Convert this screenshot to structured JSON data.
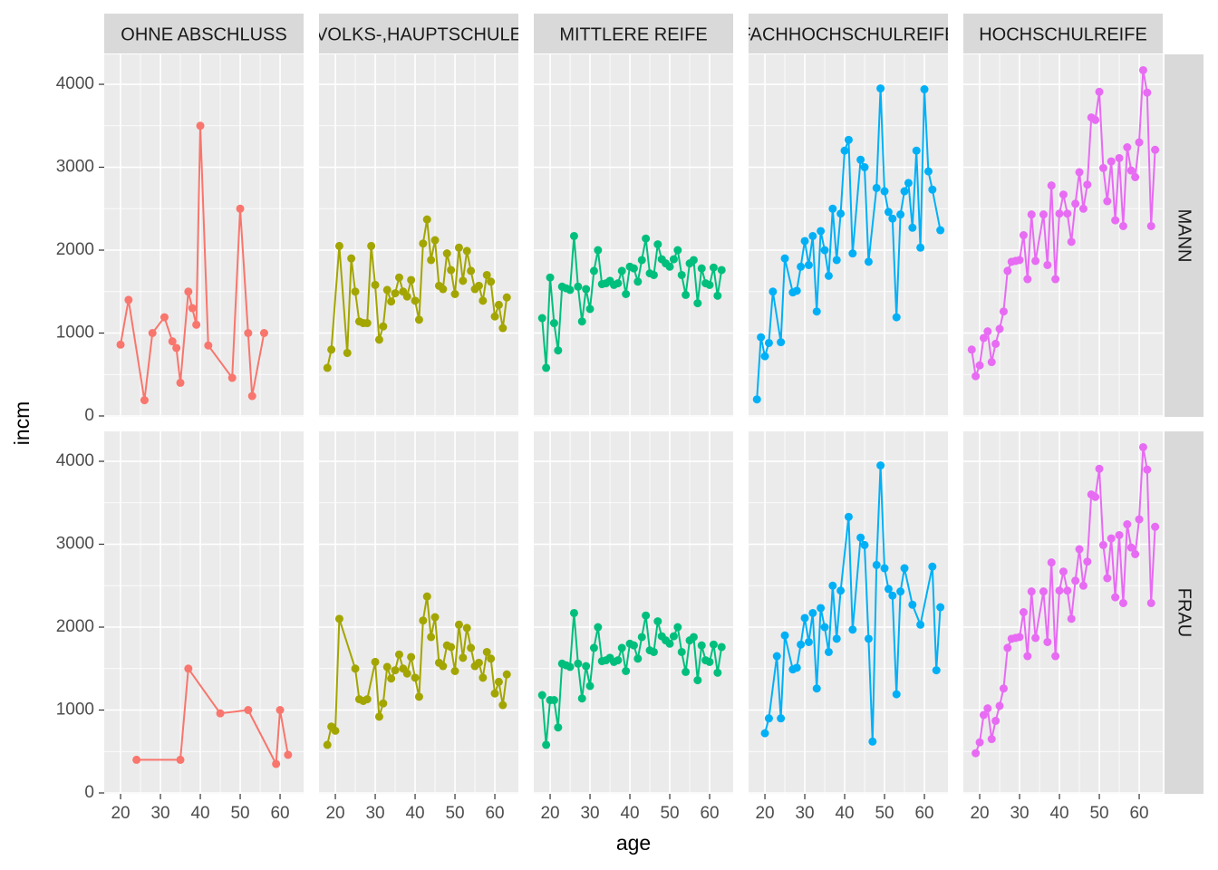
{
  "chart_data": {
    "type": "line",
    "x_label": "age",
    "y_label": "incm",
    "rows": [
      "MANN",
      "FRAU"
    ],
    "xlim": [
      15.9,
      65.9
    ],
    "xticks": [
      20,
      30,
      40,
      50,
      60
    ],
    "ylim": [
      -11,
      4361
    ],
    "yticks": [
      0,
      1000,
      2000,
      3000,
      4000
    ],
    "grid": true,
    "series": [
      {
        "name": "OHNE ABSCHLUSS",
        "color": "#F8766D",
        "rows": [
          {
            "x": [
              20,
              22,
              26,
              28,
              31,
              33,
              34,
              35,
              37,
              38,
              39,
              40,
              42,
              48,
              50,
              52,
              53,
              56
            ],
            "values": [
              860,
              1400,
              190,
              1000,
              1190,
              900,
              820,
              400,
              1500,
              1300,
              1100,
              3500,
              850,
              460,
              2500,
              1000,
              240,
              1000
            ]
          },
          {
            "x": [
              24,
              35,
              37,
              45,
              52,
              59,
              60,
              62
            ],
            "values": [
              400,
              400,
              1500,
              960,
              1000,
              350,
              1000,
              460
            ]
          }
        ]
      },
      {
        "name": "VOLKS-,HAUPTSCHULE",
        "color": "#A3A500",
        "rows": [
          {
            "x": [
              18,
              19,
              21,
              23,
              24,
              25,
              26,
              27,
              28,
              29,
              30,
              31,
              32,
              33,
              34,
              35,
              36,
              37,
              38,
              39,
              40,
              41,
              42,
              43,
              44,
              45,
              46,
              47,
              48,
              49,
              50,
              51,
              52,
              53,
              54,
              55,
              56,
              57,
              58,
              59,
              60,
              61,
              62,
              63
            ],
            "values": [
              580,
              800,
              2050,
              760,
              1900,
              1500,
              1140,
              1120,
              1120,
              2050,
              1580,
              920,
              1080,
              1520,
              1380,
              1480,
              1670,
              1500,
              1440,
              1640,
              1390,
              1160,
              2080,
              2370,
              1880,
              2120,
              1570,
              1530,
              1960,
              1760,
              1470,
              2030,
              1630,
              1990,
              1750,
              1530,
              1570,
              1390,
              1700,
              1620,
              1200,
              1340,
              1060,
              1430
            ]
          },
          {
            "x": [
              18,
              19,
              20,
              21,
              25,
              26,
              27,
              28,
              30,
              31,
              32,
              33,
              34,
              35,
              36,
              37,
              38,
              39,
              40,
              41,
              42,
              43,
              44,
              45,
              46,
              47,
              48,
              49,
              50,
              51,
              52,
              53,
              54,
              55,
              56,
              57,
              58,
              59,
              60,
              61,
              62,
              63
            ],
            "values": [
              580,
              800,
              750,
              2100,
              1500,
              1130,
              1110,
              1130,
              1580,
              920,
              1080,
              1520,
              1380,
              1480,
              1670,
              1500,
              1440,
              1640,
              1390,
              1160,
              2080,
              2370,
              1880,
              2120,
              1570,
              1530,
              1780,
              1760,
              1470,
              2030,
              1630,
              1990,
              1750,
              1530,
              1570,
              1390,
              1700,
              1620,
              1200,
              1340,
              1060,
              1430
            ]
          }
        ]
      },
      {
        "name": "MITTLERE REIFE",
        "color": "#00BF7D",
        "rows": [
          {
            "x": [
              18,
              19,
              20,
              21,
              22,
              23,
              24,
              25,
              26,
              27,
              28,
              29,
              30,
              31,
              32,
              33,
              34,
              35,
              36,
              37,
              38,
              39,
              40,
              41,
              42,
              43,
              44,
              45,
              46,
              47,
              48,
              49,
              50,
              51,
              52,
              53,
              54,
              55,
              56,
              57,
              58,
              59,
              60,
              61,
              62,
              63
            ],
            "values": [
              1180,
              580,
              1670,
              1120,
              790,
              1560,
              1540,
              1520,
              2170,
              1560,
              1140,
              1530,
              1290,
              1750,
              2000,
              1590,
              1600,
              1630,
              1580,
              1600,
              1750,
              1470,
              1800,
              1780,
              1620,
              1880,
              2140,
              1720,
              1700,
              2070,
              1890,
              1840,
              1800,
              1890,
              2000,
              1700,
              1460,
              1840,
              1880,
              1360,
              1780,
              1600,
              1580,
              1790,
              1450,
              1760
            ]
          },
          {
            "x": [
              18,
              19,
              20,
              21,
              22,
              23,
              24,
              25,
              26,
              27,
              28,
              29,
              30,
              31,
              32,
              33,
              34,
              35,
              36,
              37,
              38,
              39,
              40,
              41,
              42,
              43,
              44,
              45,
              46,
              47,
              48,
              49,
              50,
              51,
              52,
              53,
              54,
              55,
              56,
              57,
              58,
              59,
              60,
              61,
              62,
              63
            ],
            "values": [
              1180,
              580,
              1120,
              1120,
              790,
              1560,
              1540,
              1520,
              2170,
              1560,
              1140,
              1530,
              1290,
              1750,
              2000,
              1590,
              1600,
              1630,
              1580,
              1600,
              1750,
              1470,
              1800,
              1780,
              1620,
              1880,
              2140,
              1720,
              1700,
              2070,
              1890,
              1840,
              1800,
              1890,
              2000,
              1700,
              1460,
              1840,
              1880,
              1360,
              1780,
              1600,
              1580,
              1790,
              1450,
              1760
            ]
          }
        ]
      },
      {
        "name": "FACHHOCHSCHULREIFE",
        "color": "#00B0F6",
        "rows": [
          {
            "x": [
              18,
              19,
              20,
              21,
              22,
              24,
              25,
              27,
              28,
              29,
              30,
              31,
              32,
              33,
              34,
              35,
              36,
              37,
              38,
              39,
              40,
              41,
              42,
              44,
              45,
              46,
              48,
              49,
              50,
              51,
              52,
              53,
              54,
              55,
              56,
              57,
              58,
              59,
              60,
              61,
              62,
              64
            ],
            "values": [
              200,
              950,
              720,
              880,
              1500,
              890,
              1900,
              1490,
              1510,
              1800,
              2110,
              1820,
              2170,
              1260,
              2230,
              2000,
              1690,
              2500,
              1880,
              2440,
              3200,
              3330,
              1960,
              3090,
              3000,
              1860,
              2750,
              3950,
              2710,
              2460,
              2380,
              1190,
              2430,
              2710,
              2810,
              2270,
              3200,
              2030,
              3940,
              2950,
              2730,
              2240
            ]
          },
          {
            "x": [
              20,
              21,
              23,
              24,
              25,
              27,
              28,
              29,
              30,
              31,
              32,
              33,
              34,
              35,
              36,
              37,
              38,
              39,
              41,
              42,
              44,
              45,
              46,
              47,
              48,
              49,
              50,
              51,
              52,
              53,
              54,
              55,
              57,
              59,
              62,
              63,
              64
            ],
            "values": [
              720,
              900,
              1650,
              900,
              1900,
              1490,
              1510,
              1790,
              2110,
              1820,
              2170,
              1260,
              2230,
              2000,
              1700,
              2500,
              1860,
              2440,
              3330,
              1970,
              3080,
              2990,
              1860,
              620,
              2750,
              3950,
              2710,
              2460,
              2380,
              1190,
              2430,
              2710,
              2270,
              2030,
              2730,
              1480,
              2240
            ]
          }
        ]
      },
      {
        "name": "HOCHSCHULREIFE",
        "color": "#E76BF3",
        "rows": [
          {
            "x": [
              18,
              19,
              20,
              21,
              22,
              23,
              24,
              25,
              26,
              27,
              28,
              29,
              30,
              31,
              32,
              33,
              34,
              36,
              37,
              38,
              39,
              40,
              41,
              42,
              43,
              44,
              45,
              46,
              47,
              48,
              49,
              50,
              51,
              52,
              53,
              54,
              55,
              56,
              57,
              58,
              59,
              60,
              61,
              62,
              63,
              64
            ],
            "values": [
              800,
              480,
              610,
              940,
              1020,
              650,
              870,
              1050,
              1260,
              1750,
              1860,
              1870,
              1880,
              2180,
              1650,
              2430,
              1870,
              2430,
              1820,
              2780,
              1650,
              2440,
              2670,
              2440,
              2100,
              2560,
              2940,
              2500,
              2790,
              3600,
              3570,
              3910,
              2990,
              2590,
              3070,
              2360,
              3110,
              2290,
              3240,
              2960,
              2880,
              3300,
              4170,
              3900,
              2290,
              3210
            ]
          },
          {
            "x": [
              19,
              20,
              21,
              22,
              23,
              24,
              25,
              26,
              27,
              28,
              29,
              30,
              31,
              32,
              33,
              34,
              36,
              37,
              38,
              39,
              40,
              41,
              42,
              43,
              44,
              45,
              46,
              47,
              48,
              49,
              50,
              51,
              52,
              53,
              54,
              55,
              56,
              57,
              58,
              59,
              60,
              61,
              62,
              63,
              64
            ],
            "values": [
              480,
              610,
              940,
              1020,
              650,
              870,
              1050,
              1260,
              1750,
              1860,
              1870,
              1880,
              2180,
              1650,
              2430,
              1870,
              2430,
              1820,
              2780,
              1650,
              2440,
              2670,
              2440,
              2100,
              2560,
              2940,
              2500,
              2790,
              3600,
              3570,
              3910,
              2990,
              2590,
              3070,
              2360,
              3110,
              2290,
              3240,
              2960,
              2880,
              3300,
              4170,
              3900,
              2290,
              3210
            ]
          }
        ]
      }
    ]
  }
}
